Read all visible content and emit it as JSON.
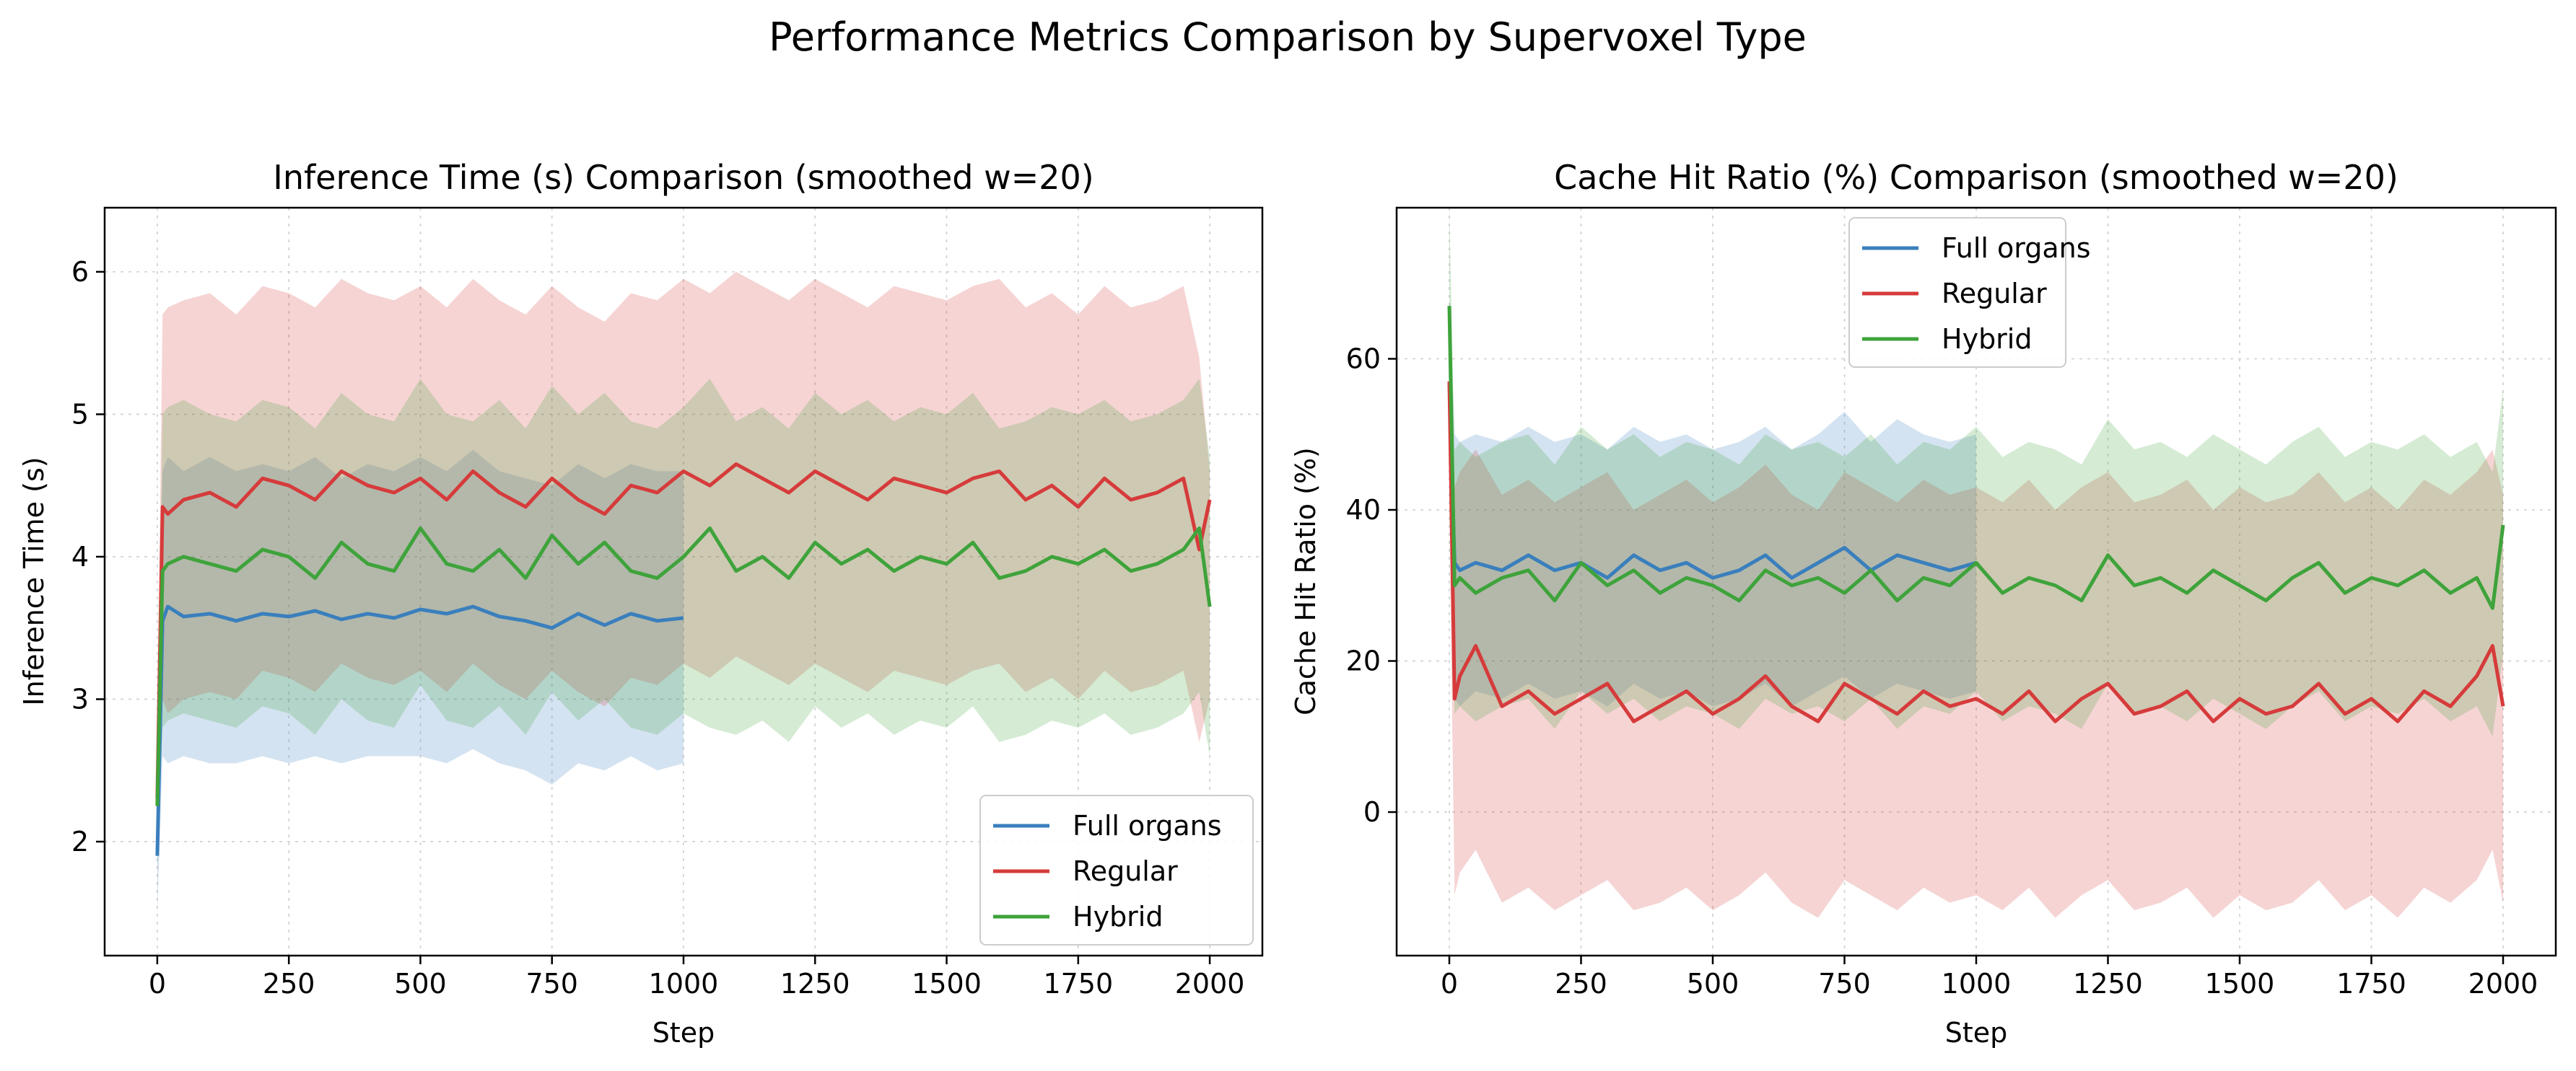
{
  "figure": {
    "suptitle": "Performance Metrics Comparison by Supervoxel Type",
    "colors": {
      "Full organs": "#3a7fbd",
      "Regular": "#d63b3b",
      "Hybrid": "#3ea33b"
    }
  },
  "chart_data": [
    {
      "type": "line",
      "title": "Inference Time (s) Comparison (smoothed w=20)",
      "xlabel": "Step",
      "ylabel": "Inference Time (s)",
      "xlim": [
        -100,
        2100
      ],
      "ylim": [
        1.2,
        6.45
      ],
      "xticks": [
        0,
        250,
        500,
        750,
        1000,
        1250,
        1500,
        1750,
        2000
      ],
      "yticks": [
        2,
        3,
        4,
        5,
        6
      ],
      "grid": true,
      "legend": "lower-right",
      "band": "shaded std band around each smoothed mean",
      "series": [
        {
          "name": "Full organs",
          "color": "#3a7fbd",
          "x": [
            0,
            10,
            20,
            50,
            100,
            150,
            200,
            250,
            300,
            350,
            400,
            450,
            500,
            550,
            600,
            650,
            700,
            750,
            800,
            850,
            900,
            950,
            1000
          ],
          "mean": [
            1.9,
            3.55,
            3.65,
            3.58,
            3.6,
            3.55,
            3.6,
            3.58,
            3.62,
            3.56,
            3.6,
            3.57,
            3.63,
            3.6,
            3.65,
            3.58,
            3.55,
            3.5,
            3.6,
            3.52,
            3.6,
            3.55,
            3.57
          ],
          "upper": [
            2.4,
            4.6,
            4.7,
            4.6,
            4.7,
            4.6,
            4.65,
            4.6,
            4.7,
            4.55,
            4.65,
            4.6,
            4.7,
            4.6,
            4.75,
            4.6,
            4.55,
            4.5,
            4.65,
            4.55,
            4.65,
            4.6,
            4.6
          ],
          "lower": [
            1.5,
            2.6,
            2.55,
            2.6,
            2.55,
            2.55,
            2.6,
            2.55,
            2.6,
            2.55,
            2.6,
            2.6,
            2.6,
            2.55,
            2.65,
            2.55,
            2.5,
            2.4,
            2.55,
            2.5,
            2.6,
            2.5,
            2.55
          ]
        },
        {
          "name": "Regular",
          "color": "#d63b3b",
          "x": [
            0,
            10,
            20,
            50,
            100,
            150,
            200,
            250,
            300,
            350,
            400,
            450,
            500,
            550,
            600,
            650,
            700,
            750,
            800,
            850,
            900,
            950,
            1000,
            1050,
            1100,
            1150,
            1200,
            1250,
            1300,
            1350,
            1400,
            1450,
            1500,
            1550,
            1600,
            1650,
            1700,
            1750,
            1800,
            1850,
            1900,
            1950,
            1980,
            2000
          ],
          "mean": [
            2.3,
            4.35,
            4.3,
            4.4,
            4.45,
            4.35,
            4.55,
            4.5,
            4.4,
            4.6,
            4.5,
            4.45,
            4.55,
            4.4,
            4.6,
            4.45,
            4.35,
            4.55,
            4.4,
            4.3,
            4.5,
            4.45,
            4.6,
            4.5,
            4.65,
            4.55,
            4.45,
            4.6,
            4.5,
            4.4,
            4.55,
            4.5,
            4.45,
            4.55,
            4.6,
            4.4,
            4.5,
            4.35,
            4.55,
            4.4,
            4.45,
            4.55,
            4.05,
            4.4
          ],
          "upper": [
            2.8,
            5.7,
            5.75,
            5.8,
            5.85,
            5.7,
            5.9,
            5.85,
            5.75,
            5.95,
            5.85,
            5.8,
            5.9,
            5.75,
            5.95,
            5.8,
            5.7,
            5.9,
            5.75,
            5.65,
            5.85,
            5.8,
            5.95,
            5.85,
            6.0,
            5.9,
            5.8,
            5.95,
            5.85,
            5.75,
            5.9,
            5.85,
            5.8,
            5.9,
            5.95,
            5.75,
            5.85,
            5.7,
            5.9,
            5.75,
            5.8,
            5.9,
            5.4,
            4.6
          ],
          "lower": [
            1.9,
            3.0,
            2.9,
            3.0,
            3.05,
            3.0,
            3.2,
            3.15,
            3.05,
            3.25,
            3.15,
            3.1,
            3.2,
            3.05,
            3.25,
            3.1,
            3.0,
            3.2,
            3.05,
            2.95,
            3.15,
            3.1,
            3.25,
            3.15,
            3.3,
            3.2,
            3.1,
            3.25,
            3.15,
            3.05,
            3.2,
            3.15,
            3.1,
            3.2,
            3.25,
            3.05,
            3.15,
            3.0,
            3.2,
            3.05,
            3.1,
            3.2,
            2.7,
            3.0
          ]
        },
        {
          "name": "Hybrid",
          "color": "#3ea33b",
          "x": [
            0,
            10,
            20,
            50,
            100,
            150,
            200,
            250,
            300,
            350,
            400,
            450,
            500,
            550,
            600,
            650,
            700,
            750,
            800,
            850,
            900,
            950,
            1000,
            1050,
            1100,
            1150,
            1200,
            1250,
            1300,
            1350,
            1400,
            1450,
            1500,
            1550,
            1600,
            1650,
            1700,
            1750,
            1800,
            1850,
            1900,
            1950,
            1980,
            2000
          ],
          "mean": [
            2.25,
            3.9,
            3.95,
            4.0,
            3.95,
            3.9,
            4.05,
            4.0,
            3.85,
            4.1,
            3.95,
            3.9,
            4.2,
            3.95,
            3.9,
            4.05,
            3.85,
            4.15,
            3.95,
            4.1,
            3.9,
            3.85,
            4.0,
            4.2,
            3.9,
            4.0,
            3.85,
            4.1,
            3.95,
            4.05,
            3.9,
            4.0,
            3.95,
            4.1,
            3.85,
            3.9,
            4.0,
            3.95,
            4.05,
            3.9,
            3.95,
            4.05,
            4.2,
            3.65
          ],
          "upper": [
            2.7,
            5.0,
            5.05,
            5.1,
            5.0,
            4.95,
            5.1,
            5.05,
            4.9,
            5.15,
            5.0,
            4.95,
            5.25,
            5.0,
            4.95,
            5.1,
            4.9,
            5.2,
            5.0,
            5.15,
            4.95,
            4.9,
            5.05,
            5.25,
            4.95,
            5.05,
            4.9,
            5.15,
            5.0,
            5.1,
            4.95,
            5.05,
            5.0,
            5.15,
            4.9,
            4.95,
            5.05,
            5.0,
            5.1,
            4.95,
            5.0,
            5.1,
            5.25,
            4.7
          ],
          "lower": [
            1.8,
            2.8,
            2.85,
            2.9,
            2.85,
            2.8,
            2.95,
            2.9,
            2.75,
            3.0,
            2.85,
            2.8,
            3.1,
            2.85,
            2.8,
            2.95,
            2.75,
            3.05,
            2.85,
            3.0,
            2.8,
            2.75,
            2.9,
            2.8,
            2.75,
            2.85,
            2.7,
            2.95,
            2.8,
            2.9,
            2.75,
            2.85,
            2.8,
            2.95,
            2.7,
            2.75,
            2.85,
            2.8,
            2.9,
            2.75,
            2.8,
            2.9,
            3.05,
            2.6
          ]
        }
      ]
    },
    {
      "type": "line",
      "title": "Cache Hit Ratio (%) Comparison (smoothed w=20)",
      "xlabel": "Step",
      "ylabel": "Cache Hit Ratio (%)",
      "xlim": [
        -100,
        2100
      ],
      "ylim": [
        -19,
        80
      ],
      "xticks": [
        0,
        250,
        500,
        750,
        1000,
        1250,
        1500,
        1750,
        2000
      ],
      "yticks": [
        0,
        20,
        40,
        60
      ],
      "grid": true,
      "legend": "upper-center",
      "band": "shaded std band around each smoothed mean",
      "series": [
        {
          "name": "Full organs",
          "color": "#3a7fbd",
          "x": [
            0,
            10,
            20,
            50,
            100,
            150,
            200,
            250,
            300,
            350,
            400,
            450,
            500,
            550,
            600,
            650,
            700,
            750,
            800,
            850,
            900,
            950,
            1000
          ],
          "mean": [
            57,
            33,
            32,
            33,
            32,
            34,
            32,
            33,
            31,
            34,
            32,
            33,
            31,
            32,
            34,
            31,
            33,
            35,
            32,
            34,
            33,
            32,
            33
          ],
          "upper": [
            68,
            50,
            49,
            50,
            49,
            51,
            49,
            50,
            48,
            51,
            49,
            50,
            48,
            49,
            51,
            48,
            50,
            53,
            49,
            52,
            50,
            49,
            50
          ],
          "lower": [
            45,
            15,
            14,
            16,
            15,
            17,
            15,
            16,
            14,
            17,
            15,
            16,
            14,
            15,
            17,
            14,
            16,
            18,
            15,
            17,
            16,
            15,
            16
          ]
        },
        {
          "name": "Regular",
          "color": "#d63b3b",
          "x": [
            0,
            10,
            20,
            50,
            100,
            150,
            200,
            250,
            300,
            350,
            400,
            450,
            500,
            550,
            600,
            650,
            700,
            750,
            800,
            850,
            900,
            950,
            1000,
            1050,
            1100,
            1150,
            1200,
            1250,
            1300,
            1350,
            1400,
            1450,
            1500,
            1550,
            1600,
            1650,
            1700,
            1750,
            1800,
            1850,
            1900,
            1950,
            1980,
            2000
          ],
          "mean": [
            57,
            15,
            18,
            22,
            14,
            16,
            13,
            15,
            17,
            12,
            14,
            16,
            13,
            15,
            18,
            14,
            12,
            17,
            15,
            13,
            16,
            14,
            15,
            13,
            16,
            12,
            15,
            17,
            13,
            14,
            16,
            12,
            15,
            13,
            14,
            17,
            13,
            15,
            12,
            16,
            14,
            18,
            22,
            14
          ],
          "upper": [
            62,
            43,
            45,
            48,
            42,
            44,
            41,
            43,
            45,
            40,
            42,
            44,
            41,
            43,
            46,
            42,
            40,
            45,
            43,
            41,
            44,
            42,
            43,
            41,
            44,
            40,
            43,
            45,
            41,
            42,
            44,
            40,
            43,
            41,
            42,
            45,
            41,
            43,
            40,
            44,
            42,
            45,
            48,
            42
          ],
          "lower": [
            40,
            -11,
            -8,
            -5,
            -12,
            -10,
            -13,
            -11,
            -9,
            -13,
            -12,
            -10,
            -13,
            -11,
            -8,
            -12,
            -14,
            -9,
            -11,
            -13,
            -10,
            -12,
            -11,
            -13,
            -10,
            -14,
            -11,
            -9,
            -13,
            -12,
            -10,
            -14,
            -11,
            -13,
            -12,
            -9,
            -13,
            -11,
            -14,
            -10,
            -12,
            -9,
            -5,
            -12
          ]
        },
        {
          "name": "Hybrid",
          "color": "#3ea33b",
          "x": [
            0,
            10,
            20,
            50,
            100,
            150,
            200,
            250,
            300,
            350,
            400,
            450,
            500,
            550,
            600,
            650,
            700,
            750,
            800,
            850,
            900,
            950,
            1000,
            1050,
            1100,
            1150,
            1200,
            1250,
            1300,
            1350,
            1400,
            1450,
            1500,
            1550,
            1600,
            1650,
            1700,
            1750,
            1800,
            1850,
            1900,
            1950,
            1980,
            2000
          ],
          "mean": [
            67,
            30,
            31,
            29,
            31,
            32,
            28,
            33,
            30,
            32,
            29,
            31,
            30,
            28,
            32,
            30,
            31,
            29,
            32,
            28,
            31,
            30,
            33,
            29,
            31,
            30,
            28,
            34,
            30,
            31,
            29,
            32,
            30,
            28,
            31,
            33,
            29,
            31,
            30,
            32,
            29,
            31,
            27,
            38
          ],
          "upper": [
            80,
            48,
            49,
            47,
            49,
            50,
            46,
            51,
            48,
            50,
            47,
            49,
            48,
            46,
            50,
            48,
            49,
            47,
            50,
            46,
            49,
            48,
            51,
            47,
            49,
            48,
            46,
            52,
            48,
            49,
            47,
            50,
            48,
            46,
            49,
            51,
            47,
            49,
            48,
            50,
            47,
            49,
            45,
            56
          ],
          "lower": [
            55,
            13,
            14,
            12,
            14,
            15,
            11,
            16,
            13,
            15,
            12,
            14,
            13,
            11,
            15,
            13,
            14,
            12,
            15,
            11,
            14,
            13,
            16,
            12,
            14,
            13,
            11,
            17,
            13,
            14,
            12,
            15,
            13,
            11,
            14,
            16,
            12,
            14,
            13,
            15,
            12,
            14,
            10,
            21
          ]
        }
      ]
    }
  ]
}
